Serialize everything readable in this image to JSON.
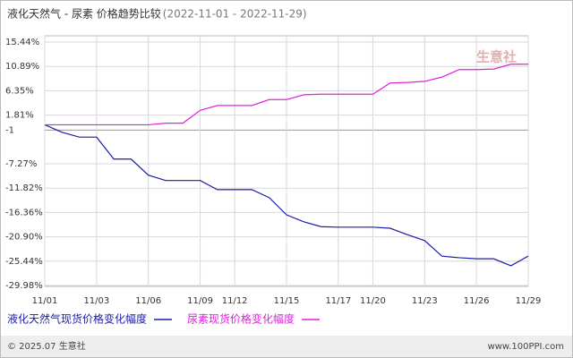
{
  "chart_data": {
    "type": "line",
    "title": "液化天然气 - 尿素  价格趋势比较",
    "subtitle": "(2022-11-01 - 2022-11-29)",
    "categories": [
      "11/01",
      null,
      null,
      "11/03",
      null,
      null,
      "11/06",
      null,
      null,
      "11/09",
      null,
      "11/12",
      null,
      null,
      "11/15",
      null,
      null,
      "11/17",
      null,
      "11/20",
      null,
      null,
      "11/23",
      null,
      null,
      "11/26",
      null,
      null,
      "11/29"
    ],
    "series": [
      {
        "name": "液化天然气现货价格变化幅度",
        "color": "#1c1ca6",
        "values": [
          0,
          -1.4,
          -2.3,
          -2.3,
          -6.4,
          -6.4,
          -9.4,
          -10.4,
          -10.4,
          -10.4,
          -12.1,
          -12.1,
          -12.1,
          -13.6,
          -16.8,
          -18.1,
          -19.0,
          -19.1,
          -19.1,
          -19.1,
          -19.3,
          -20.5,
          -21.6,
          -24.5,
          -24.8,
          -25.0,
          -25.0,
          -26.3,
          -24.5
        ]
      },
      {
        "name": "尿素现货价格变化幅度",
        "color": "#e020e0",
        "values": [
          0,
          0,
          0,
          0,
          0,
          0,
          0,
          0.3,
          0.3,
          2.7,
          3.6,
          3.6,
          3.6,
          4.7,
          4.7,
          5.6,
          5.7,
          5.7,
          5.7,
          5.7,
          7.8,
          7.9,
          8.1,
          8.9,
          10.3,
          10.3,
          10.4,
          11.3,
          11.3
        ]
      }
    ],
    "ylim": [
      -30.15,
      16.6
    ],
    "yticks": [
      {
        "value": 15.44,
        "label": "15.44%"
      },
      {
        "value": 10.89,
        "label": "10.89%"
      },
      {
        "value": 6.35,
        "label": "6.35%"
      },
      {
        "value": 1.81,
        "label": "1.81%"
      },
      -1,
      {
        "value": -7.27,
        "label": "-7.27%"
      },
      {
        "value": -11.82,
        "label": "-11.82%"
      },
      {
        "value": -16.36,
        "label": "-16.36%"
      },
      {
        "value": -20.9,
        "label": "-20.90%"
      },
      {
        "value": -25.44,
        "label": "-25.44%"
      },
      {
        "value": -29.98,
        "label": "-29.98%"
      }
    ],
    "grid": true,
    "watermark": "生意社",
    "footer_left": "© 2025.07 生意社",
    "footer_right": "www.100PPI.com"
  }
}
